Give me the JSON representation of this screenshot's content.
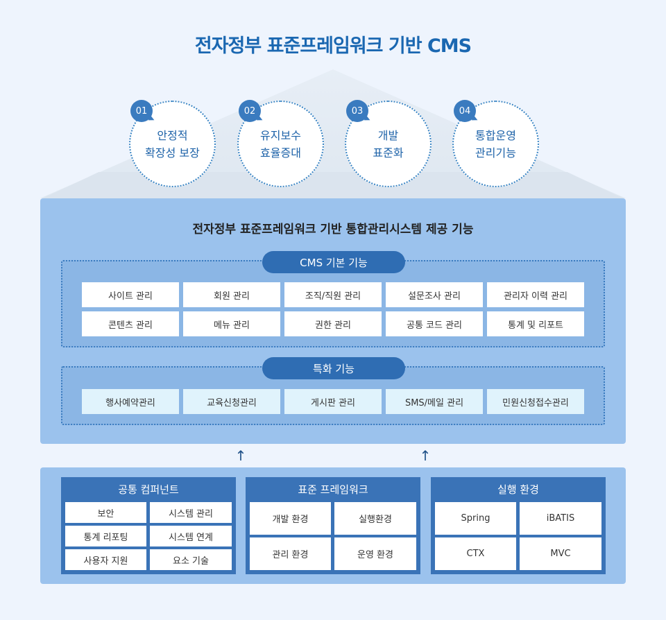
{
  "title": "전자정부 표준프레임워크 기반 CMS",
  "goals": [
    {
      "num": "01",
      "label": "안정적\n확장성 보장"
    },
    {
      "num": "02",
      "label": "유지보수\n효율증대"
    },
    {
      "num": "03",
      "label": "개발\n표준화"
    },
    {
      "num": "04",
      "label": "통합운영\n관리기능"
    }
  ],
  "panel_title": "전자정부 표준프레임워크 기반 통합관리시스템 제공 기능",
  "basic": {
    "title": "CMS 기본 기능",
    "items": [
      "사이트 관리",
      "회원 관리",
      "조직/직원 관리",
      "설문조사 관리",
      "관리자 이력 관리",
      "콘텐츠 관리",
      "메뉴 관리",
      "권한 관리",
      "공통 코드 관리",
      "통계 및 리포트"
    ]
  },
  "special": {
    "title": "특화 기능",
    "items": [
      "행사예약관리",
      "교육신청관리",
      "게시판 관리",
      "SMS/메일 관리",
      "민원신청접수관리"
    ]
  },
  "arrows": [
    "↑",
    "↑"
  ],
  "columns": [
    {
      "title": "공통 컴퍼넌트",
      "items": [
        "보안",
        "시스템 관리",
        "통계 리포팅",
        "시스템 연계",
        "사용자 지원",
        "요소 기술"
      ]
    },
    {
      "title": "표준 프레임워크",
      "items": [
        "개발 환경",
        "실행환경",
        "관리 환경",
        "운영 환경"
      ]
    },
    {
      "title": "실행 환경",
      "items": [
        "Spring",
        "iBATIS",
        "CTX",
        "MVC"
      ]
    }
  ]
}
